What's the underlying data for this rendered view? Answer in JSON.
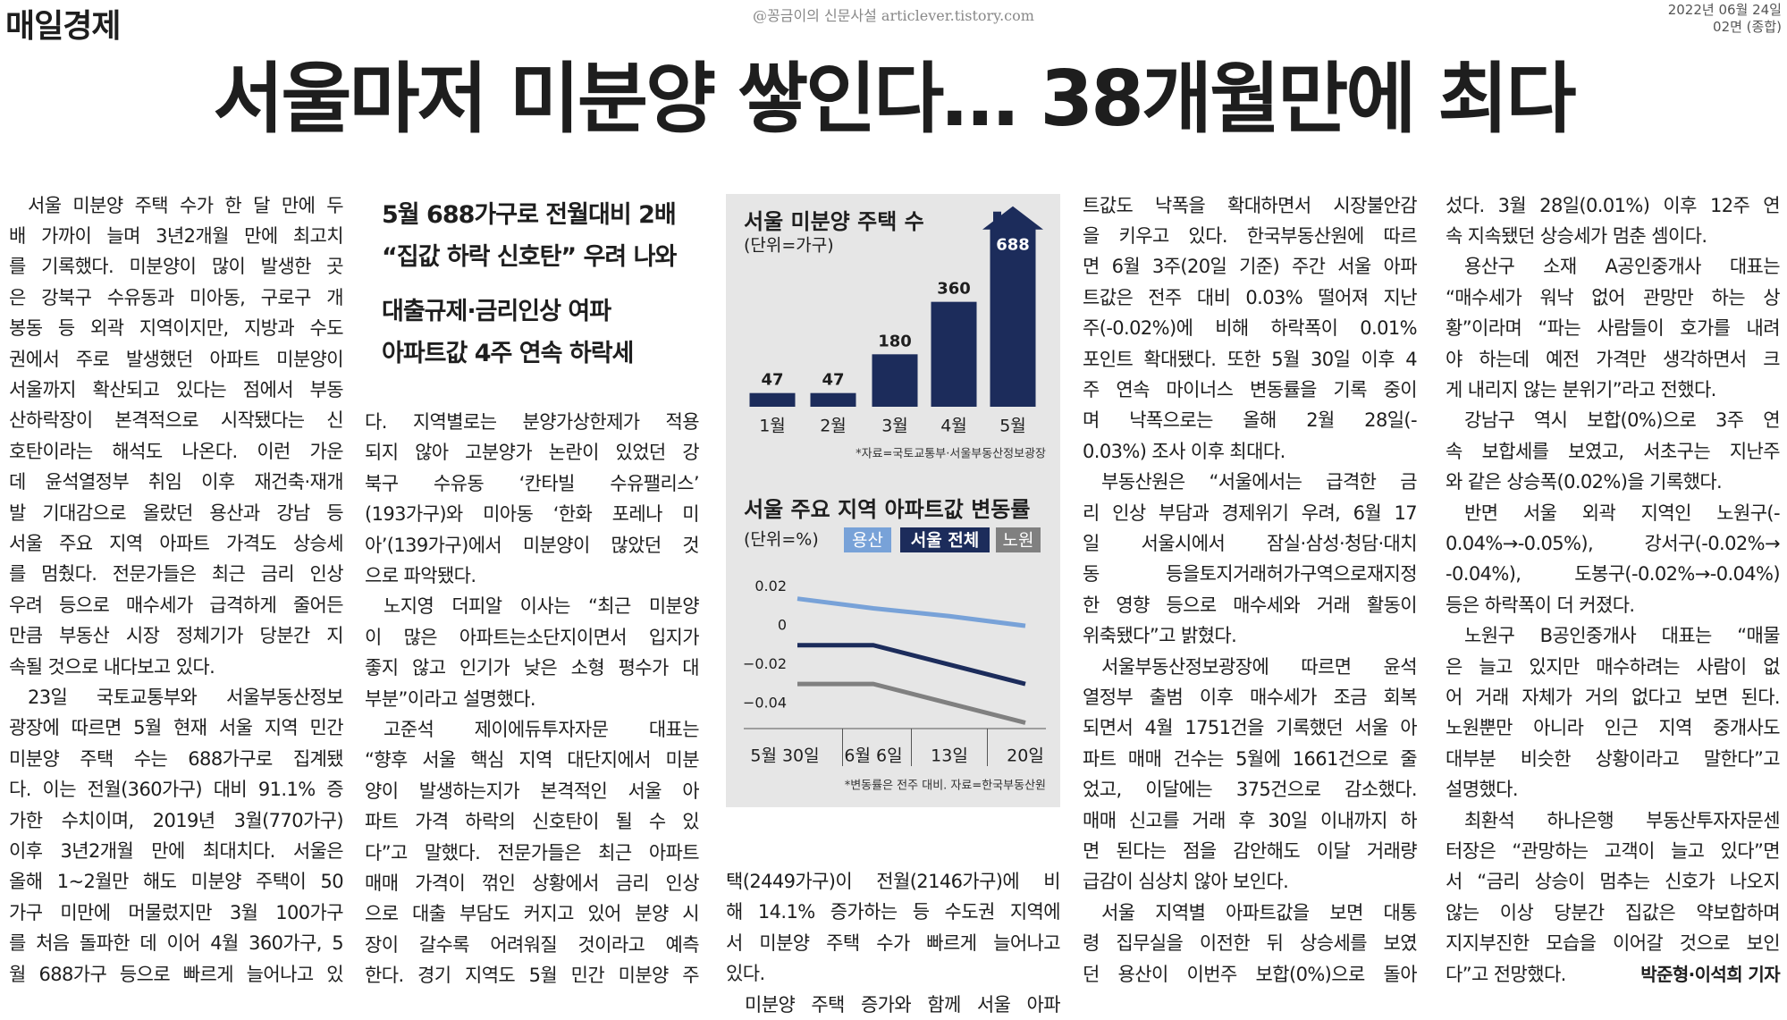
{
  "header": {
    "paper": "매일경제",
    "watermark": "@꽁금이의 신문사설 articlever.tistory.com",
    "date": "2022년 06월 24일",
    "page": "02면 (종합)"
  },
  "headline": "서울마저 미분양 쌓인다… 38개월만에 최다",
  "subheads": [
    "5월 688가구로 전월대비 2배",
    "“집값 하락 신호탄” 우려 나와",
    "대출규제·금리인상 여파",
    "아파트값 4주 연속 하락세"
  ],
  "columns": [
    [
      [
        "서울 미분양 주택 수가 한 달 만에 두",
        "배 가까이 늘며 3년2개월 만에 최고치",
        "를 기록했다. 미분양이 많이 발생한 곳",
        "은 강북구 수유동과 미아동, 구로구 개",
        "봉동 등 외곽 지역이지만, 지방과 수도",
        "권에서 주로 발생했던 아파트 미분양이",
        "서울까지 확산되고 있다는 점에서 부동",
        "산하락장이 본격적으로 시작됐다는 신",
        "호탄이라는 해석도 나온다. 이런 가운",
        "데 윤석열정부 취임 이후 재건축·재개",
        "발 기대감으로 올랐던 용산과 강남 등",
        "서울 주요 지역 아파트 가격도 상승세",
        "를 멈췄다. 전문가들은 최근 금리 인상",
        "우려 등으로 매수세가 급격하게 줄어든",
        "만큼 부동산 시장 정체기가 당분간 지",
        "속될 것으로 내다보고 있다."
      ],
      [
        "23일 국토교통부와 서울부동산정보",
        "광장에 따르면 5월 현재 서울 지역 민간",
        "미분양 주택 수는 688가구로 집계됐",
        "다. 이는 전월(360가구) 대비 91.1% 증",
        "가한 수치이며, 2019년 3월(770가구)",
        "이후 3년2개월 만에 최대치다. 서울은",
        "올해 1~2월만 해도 미분양 주택이 50",
        "가구 미만에 머물렀지만 3월 100가구",
        "를 처음 돌파한 데 이어 4월 360가구, 5",
        "월 688가구 등으로 빠르게 늘어나고 있"
      ]
    ],
    [
      [
        "다. 지역별로는 분양가상한제가 적용",
        "되지 않아 고분양가 논란이 있었던 강",
        "북구 수유동 ‘칸타빌 수유팰리스’",
        "(193가구)와 미아동 ‘한화 포레나 미",
        "아’(139가구)에서 미분양이 많았던 것",
        "으로 파악됐다."
      ],
      [
        "노지영 더피알 이사는 “최근 미분양",
        "이 많은 아파트는소단지이면서 입지가",
        "좋지 않고 인기가 낮은 소형 평수가 대",
        "부분”이라고 설명했다."
      ],
      [
        "고준석 제이에듀투자자문 대표는",
        "“향후 서울 핵심 지역 대단지에서 미분",
        "양이 발생하는지가 본격적인 서울 아",
        "파트 가격 하락의 신호탄이 될 수 있",
        "다”고 말했다. 전문가들은 최근 아파트",
        "매매 가격이 꺾인 상황에서 금리 인상",
        "으로 대출 부담도 커지고 있어 분양 시",
        "장이 갈수록 어려워질 것이라고 예측",
        "한다. 경기 지역도 5월 민간 미분양 주"
      ]
    ],
    [
      [
        "택(2449가구)이 전월(2146가구)에 비",
        "해 14.1% 증가하는 등 수도권 지역에",
        "서 미분양 주택 수가 빠르게 늘어나고",
        "있다."
      ],
      [
        "미분양 주택 증가와 함께 서울 아파"
      ]
    ],
    [
      [
        "트값도 낙폭을 확대하면서 시장불안감",
        "을 키우고 있다. 한국부동산원에 따르",
        "면 6월 3주(20일 기준) 주간 서울 아파",
        "트값은 전주 대비 0.03% 떨어져 지난",
        "주(-0.02%)에 비해 하락폭이 0.01%",
        "포인트 확대됐다. 또한 5월 30일 이후 4",
        "주 연속 마이너스 변동률을 기록 중이",
        "며 낙폭으로는 올해 2월 28일(-",
        "0.03%) 조사 이후 최대다."
      ],
      [
        "부동산원은 “서울에서는 급격한 금",
        "리 인상 부담과 경제위기 우려, 6월 17",
        "일 서울시에서 잠실·삼성·청담·대치",
        "동 등을토지거래허가구역으로재지정",
        "한 영향 등으로 매수세와 거래 활동이",
        "위축됐다”고 밝혔다."
      ],
      [
        "서울부동산정보광장에 따르면 윤석",
        "열정부 출범 이후 매수세가 조금 회복",
        "되면서 4월 1751건을 기록했던 서울 아",
        "파트 매매 건수는 5월에 1661건으로 줄",
        "었고, 이달에는 375건으로 감소했다.",
        "매매 신고를 거래 후 30일 이내까지 하",
        "면 된다는 점을 감안해도 이달 거래량",
        "급감이 심상치 않아 보인다."
      ],
      [
        "서울 지역별 아파트값을 보면 대통",
        "령 집무실을 이전한 뒤 상승세를 보였",
        "던 용산이 이번주 보합(0%)으로 돌아"
      ]
    ],
    [
      [
        "섰다. 3월 28일(0.01%) 이후 12주 연",
        "속 지속됐던 상승세가 멈춘 셈이다."
      ],
      [
        "용산구 소재 A공인중개사 대표는",
        "“매수세가 워낙 없어 관망만 하는 상",
        "황”이라며 “파는 사람들이 호가를 내려",
        "야 하는데 예전 가격만 생각하면서 크",
        "게 내리지 않는 분위기”라고 전했다."
      ],
      [
        "강남구 역시 보합(0%)으로 3주 연",
        "속 보합세를 보였고, 서초구는 지난주",
        "와 같은 상승폭(0.02%)을 기록했다."
      ],
      [
        "반면 서울 외곽 지역인 노원구(-",
        "0.04%→-0.05%), 강서구(-0.02%→",
        "-0.04%), 도봉구(-0.02%→-0.04%)",
        "등은 하락폭이 더 커졌다."
      ],
      [
        "노원구 B공인중개사 대표는 “매물",
        "은 늘고 있지만 매수하려는 사람이 없",
        "어 거래 자체가 거의 없다고 보면 된다.",
        "노원뿐만 아니라 인근 지역 중개사도",
        "대부분 비슷한 상황이라고 말한다”고",
        "설명했다."
      ],
      [
        "최환석 하나은행 부동산투자자문센",
        "터장은 “관망하는 고객이 늘고 있다”면",
        "서 “금리 상승이 멈추는 신호가 나오지",
        "않는 이상 당분간 집값은 약보합하며",
        "지지부진한 모습을 이어갈 것으로 보인",
        "다”고 전망했다."
      ]
    ]
  ],
  "byline": "박준형·이석희 기자",
  "chart_data": [
    {
      "type": "bar",
      "title": "서울 미분양 주택 수",
      "unit": "(단위=가구)",
      "categories": [
        "1월",
        "2월",
        "3월",
        "4월",
        "5월"
      ],
      "values": [
        47,
        47,
        180,
        360,
        688
      ],
      "color": "#1c2c5b",
      "source": "*자료=국토교통부·서울부동산정보광장"
    },
    {
      "type": "line",
      "title": "서울 주요 지역 아파트값 변동률",
      "unit": "(단위=%)",
      "categories": [
        "5월 30일",
        "6월 6일",
        "13일",
        "20일"
      ],
      "series": [
        {
          "name": "용산",
          "color": "#78a2d8",
          "values": [
            0.014,
            0.009,
            0.005,
            0
          ]
        },
        {
          "name": "서울 전체",
          "color": "#1c2c5b",
          "values": [
            -0.01,
            -0.01,
            -0.02,
            -0.03
          ]
        },
        {
          "name": "노원",
          "color": "#808080",
          "values": [
            -0.03,
            -0.03,
            -0.04,
            -0.05
          ]
        }
      ],
      "ylim": [
        -0.053,
        0.03
      ],
      "yticks": [
        0.02,
        0,
        {
          "value": -0.02,
          "label": "−0.02"
        },
        {
          "value": -0.04,
          "label": "−0.04"
        }
      ],
      "source": "*변동률은 전주 대비. 자료=한국부동산원"
    }
  ]
}
